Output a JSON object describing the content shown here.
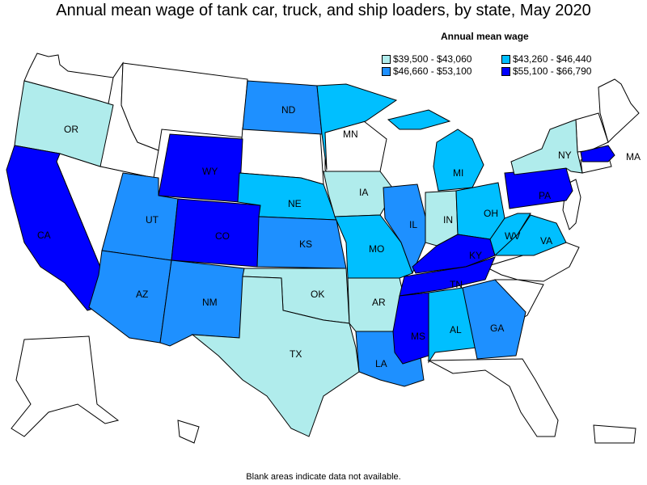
{
  "title": "Annual mean wage of tank car, truck, and ship loaders, by state, May 2020",
  "legend": {
    "title": "Annual mean wage",
    "items": [
      {
        "label": "$39,500 - $43,060",
        "color": "#b0ecec"
      },
      {
        "label": "$43,260 - $46,440",
        "color": "#00bfff"
      },
      {
        "label": "$46,660 - $53,100",
        "color": "#1e90ff"
      },
      {
        "label": "$55,100 - $66,790",
        "color": "#0000ff"
      }
    ]
  },
  "footnote": "Blank areas indicate data not available.",
  "states": [
    {
      "abbr": "OR",
      "bin": 0
    },
    {
      "abbr": "CA",
      "bin": 3
    },
    {
      "abbr": "WY",
      "bin": 3
    },
    {
      "abbr": "UT",
      "bin": 2
    },
    {
      "abbr": "CO",
      "bin": 3
    },
    {
      "abbr": "AZ",
      "bin": 2
    },
    {
      "abbr": "NM",
      "bin": 2
    },
    {
      "abbr": "ND",
      "bin": 2
    },
    {
      "abbr": "NE",
      "bin": 1
    },
    {
      "abbr": "KS",
      "bin": 2
    },
    {
      "abbr": "OK",
      "bin": 0
    },
    {
      "abbr": "TX",
      "bin": 0
    },
    {
      "abbr": "MN",
      "bin": 1
    },
    {
      "abbr": "IA",
      "bin": 0
    },
    {
      "abbr": "MO",
      "bin": 1
    },
    {
      "abbr": "AR",
      "bin": 0
    },
    {
      "abbr": "LA",
      "bin": 2
    },
    {
      "abbr": "IL",
      "bin": 2
    },
    {
      "abbr": "IN",
      "bin": 0
    },
    {
      "abbr": "MI",
      "bin": 1
    },
    {
      "abbr": "OH",
      "bin": 1
    },
    {
      "abbr": "KY",
      "bin": 3
    },
    {
      "abbr": "TN",
      "bin": 3
    },
    {
      "abbr": "MS",
      "bin": 3
    },
    {
      "abbr": "AL",
      "bin": 1
    },
    {
      "abbr": "GA",
      "bin": 2
    },
    {
      "abbr": "WV",
      "bin": 1
    },
    {
      "abbr": "VA",
      "bin": 1
    },
    {
      "abbr": "PA",
      "bin": 3
    },
    {
      "abbr": "NY",
      "bin": 0
    },
    {
      "abbr": "MA",
      "bin": 3
    }
  ]
}
